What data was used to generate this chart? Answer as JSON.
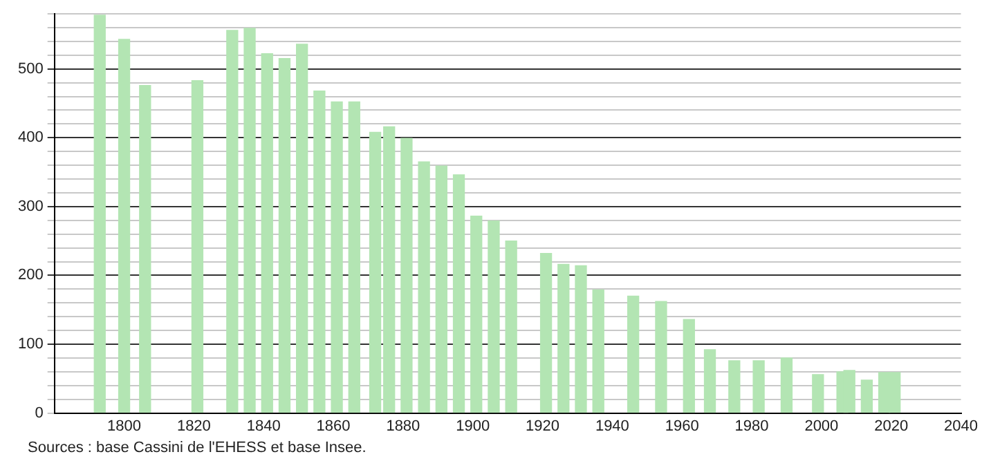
{
  "chart_data": {
    "type": "bar",
    "x": [
      1793,
      1800,
      1806,
      1821,
      1831,
      1836,
      1841,
      1846,
      1851,
      1856,
      1861,
      1866,
      1872,
      1876,
      1881,
      1886,
      1891,
      1896,
      1901,
      1906,
      1911,
      1921,
      1926,
      1931,
      1936,
      1946,
      1954,
      1962,
      1968,
      1975,
      1982,
      1990,
      1999,
      2006,
      2008,
      2013,
      2018,
      2021
    ],
    "values": [
      578,
      543,
      476,
      483,
      556,
      559,
      522,
      515,
      536,
      468,
      452,
      452,
      408,
      416,
      399,
      365,
      359,
      346,
      286,
      279,
      250,
      232,
      216,
      214,
      179,
      170,
      162,
      136,
      92,
      76,
      76,
      80,
      56,
      60,
      62,
      48,
      59,
      59
    ],
    "color": "#b3e5b3",
    "xlim": [
      1780,
      2040
    ],
    "xticks": [
      1800,
      1820,
      1840,
      1860,
      1880,
      1900,
      1920,
      1940,
      1960,
      1980,
      2000,
      2020,
      2040
    ],
    "ylim": [
      0,
      580
    ],
    "yticks": [
      0,
      {
        "value": 20,
        "label": null
      },
      {
        "value": 40,
        "label": null
      },
      {
        "value": 60,
        "label": null
      },
      {
        "value": 80,
        "label": null
      },
      100,
      {
        "value": 120,
        "label": null
      },
      {
        "value": 140,
        "label": null
      },
      {
        "value": 160,
        "label": null
      },
      {
        "value": 180,
        "label": null
      },
      200,
      {
        "value": 220,
        "label": null
      },
      {
        "value": 240,
        "label": null
      },
      {
        "value": 260,
        "label": null
      },
      {
        "value": 280,
        "label": null
      },
      300,
      {
        "value": 320,
        "label": null
      },
      {
        "value": 340,
        "label": null
      },
      {
        "value": 360,
        "label": null
      },
      {
        "value": 380,
        "label": null
      },
      400,
      {
        "value": 420,
        "label": null
      },
      {
        "value": 440,
        "label": null
      },
      {
        "value": 460,
        "label": null
      },
      {
        "value": 480,
        "label": null
      },
      500,
      {
        "value": 520,
        "label": null
      },
      {
        "value": 540,
        "label": null
      },
      {
        "value": 560,
        "label": null
      },
      {
        "value": 580,
        "label": null
      }
    ],
    "grid": "y",
    "annotations": [
      "Sources : base Cassini de l'EHESS et base Insee."
    ]
  }
}
